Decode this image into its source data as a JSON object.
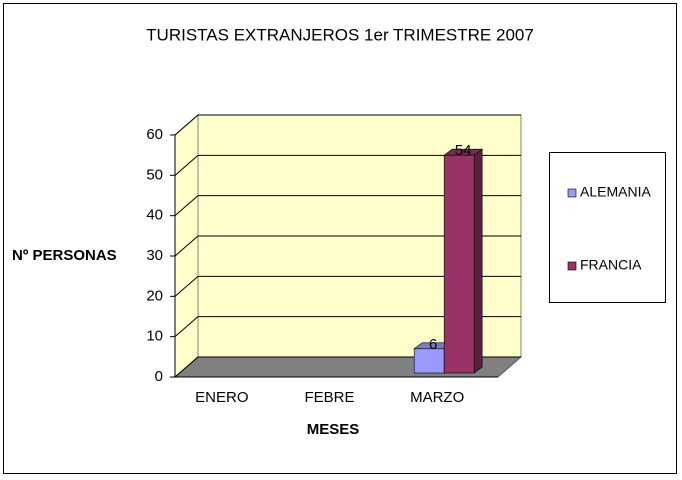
{
  "chart_data": {
    "type": "bar3d",
    "title": "TURISTAS EXTRANJEROS 1er TRIMESTRE 2007",
    "x_label": "MESES",
    "y_label": "Nº PERSONAS",
    "categories": [
      "ENERO",
      "FEBRE",
      "MARZO"
    ],
    "series": [
      {
        "name": "ALEMANIA",
        "color": "#9999ff",
        "values": [
          null,
          null,
          6
        ]
      },
      {
        "name": "FRANCIA",
        "color": "#993366",
        "values": [
          null,
          null,
          54
        ]
      }
    ],
    "ylim": [
      0,
      60
    ],
    "yticks": [
      0,
      10,
      20,
      30,
      40,
      50,
      60
    ],
    "grid": true,
    "legend": "right"
  }
}
